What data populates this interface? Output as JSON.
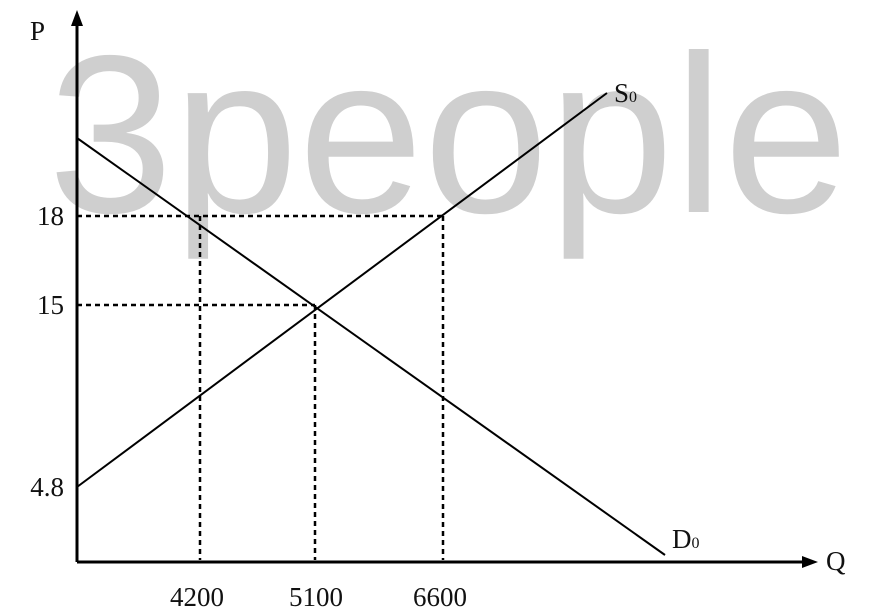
{
  "watermark": "3people",
  "axes": {
    "y_label": "P",
    "x_label": "Q"
  },
  "price_labels": [
    "18",
    "15",
    "4.8"
  ],
  "quantity_labels": [
    "4200",
    "5100",
    "6600"
  ],
  "curves": [
    {
      "letter": "S",
      "subscript": "0"
    },
    {
      "letter": "D",
      "subscript": "0"
    }
  ]
}
